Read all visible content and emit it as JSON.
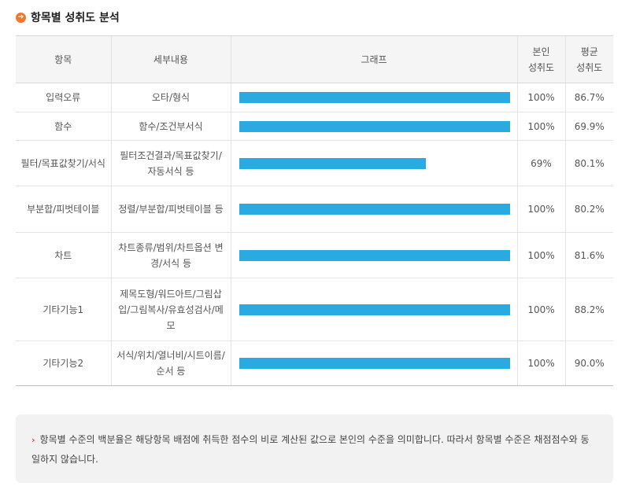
{
  "section": {
    "icon": "arrow-right-circle-icon",
    "title": "항목별 성취도 분석"
  },
  "colors": {
    "accent": "#f0772b",
    "bar": "#29abe2",
    "notice_bullet": "#e8452e"
  },
  "table": {
    "headers": {
      "item": "항목",
      "detail": "세부내용",
      "graph": "그래프",
      "my_score_line1": "본인",
      "my_score_line2": "성취도",
      "avg_score_line1": "평균",
      "avg_score_line2": "성취도"
    },
    "rows": [
      {
        "item": "입력오류",
        "detail": "오타/형식",
        "percent": 100,
        "my_score": "100%",
        "avg_score": "86.7%"
      },
      {
        "item": "함수",
        "detail": "함수/조건부서식",
        "percent": 100,
        "my_score": "100%",
        "avg_score": "69.9%"
      },
      {
        "item": "필터/목표값찾기/서식",
        "detail": "필터조건결과/목표값찾기/자동서식 등",
        "percent": 69,
        "my_score": "69%",
        "avg_score": "80.1%"
      },
      {
        "item": "부분합/피벗테이블",
        "detail": "정렬/부분합/피벗테이블 등",
        "percent": 100,
        "my_score": "100%",
        "avg_score": "80.2%"
      },
      {
        "item": "차트",
        "detail": "차트종류/범위/차트옵션 변경/서식 등",
        "percent": 100,
        "my_score": "100%",
        "avg_score": "81.6%"
      },
      {
        "item": "기타기능1",
        "detail": "제목도형/워드아트/그림삽입/그림복사/유효성검사/메모",
        "percent": 100,
        "my_score": "100%",
        "avg_score": "88.2%"
      },
      {
        "item": "기타기능2",
        "detail": "서식/위치/열너비/시트이름/순서 등",
        "percent": 100,
        "my_score": "100%",
        "avg_score": "90.0%"
      }
    ]
  },
  "notice": {
    "bullet": "›",
    "text": "항목별 수준의 백분율은 해당항목 배점에 취득한 점수의 비로 계산된 값으로 본인의 수준을 의미합니다. 따라서 항목별 수준은 채점점수와 동일하지 않습니다."
  }
}
